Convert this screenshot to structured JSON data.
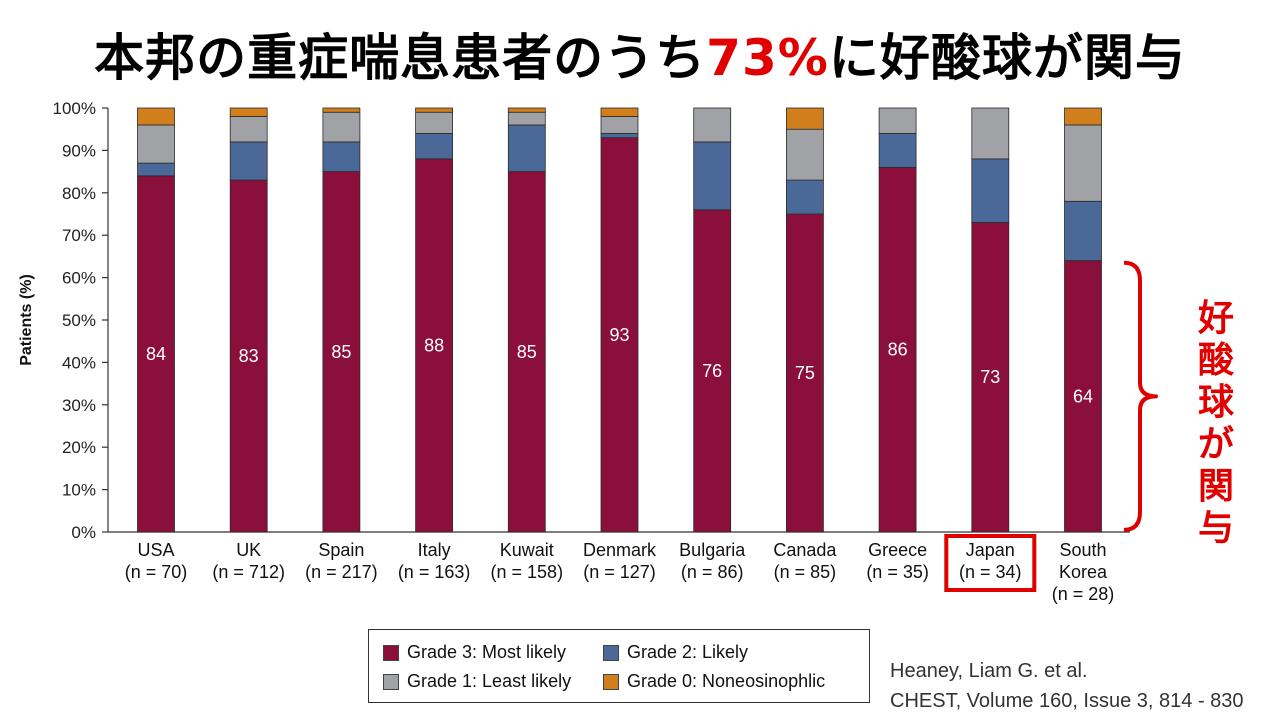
{
  "title": {
    "prefix": "本邦の重症喘息患者のうち",
    "highlight": "73%",
    "suffix": "に好酸球が関与"
  },
  "side_label": [
    "好",
    "酸",
    "球",
    "が",
    "関",
    "与"
  ],
  "citation": {
    "line1": "Heaney, Liam G. et al.",
    "line2": "CHEST, Volume 160, Issue 3, 814 - 830"
  },
  "colors": {
    "grade3": "#8a0f3a",
    "grade2": "#4a6898",
    "grade1": "#a0a2a6",
    "grade0": "#d07f1c",
    "accent": "#e00000"
  },
  "chart_data": {
    "type": "bar",
    "stacked": true,
    "ylabel": "Patients (%)",
    "ylim": [
      0,
      100
    ],
    "yticks": [
      "0%",
      "10%",
      "20%",
      "30%",
      "40%",
      "50%",
      "60%",
      "70%",
      "80%",
      "90%",
      "100%"
    ],
    "categories": [
      [
        "USA",
        "(n = 70)"
      ],
      [
        "UK",
        "(n = 712)"
      ],
      [
        "Spain",
        "(n = 217)"
      ],
      [
        "Italy",
        "(n = 163)"
      ],
      [
        "Kuwait",
        "(n = 158)"
      ],
      [
        "Denmark",
        "(n = 127)"
      ],
      [
        "Bulgaria",
        "(n = 86)"
      ],
      [
        "Canada",
        "(n = 85)"
      ],
      [
        "Greece",
        "(n = 35)"
      ],
      [
        "Japan",
        "(n = 34)"
      ],
      [
        "South",
        "Korea",
        "(n = 28)"
      ]
    ],
    "highlight_category": "Japan",
    "series": [
      {
        "name": "Grade 3: Most likely",
        "values": [
          84,
          83,
          85,
          88,
          85,
          93,
          76,
          75,
          86,
          73,
          64
        ],
        "labels": [
          "84",
          "83",
          "85",
          "88",
          "85",
          "93",
          "76",
          "75",
          "86",
          "73",
          "64"
        ]
      },
      {
        "name": "Grade 2: Likely",
        "values": [
          3,
          9,
          7,
          6,
          11,
          1,
          16,
          8,
          8,
          15,
          14
        ]
      },
      {
        "name": "Grade 1: Least likely",
        "values": [
          9,
          6,
          7,
          5,
          3,
          4,
          8,
          12,
          6,
          12,
          18
        ]
      },
      {
        "name": "Grade 0: Noneosinophlic",
        "values": [
          4,
          2,
          1,
          1,
          1,
          2,
          0,
          5,
          0,
          0,
          4
        ]
      }
    ],
    "legend": [
      "Grade 3: Most likely",
      "Grade 2: Likely",
      "Grade 1: Least likely",
      "Grade 0: Noneosinophlic"
    ]
  }
}
